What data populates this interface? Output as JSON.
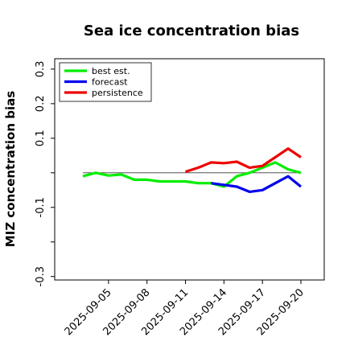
{
  "chart_data": {
    "type": "line",
    "title": "Sea ice concentration bias",
    "xlabel": "",
    "ylabel": "MIZ concentration bias",
    "ylim": [
      -0.31,
      0.33
    ],
    "yticks": [
      {
        "value": 0.3,
        "label": "0.3"
      },
      {
        "value": 0.2,
        "label": "0.2"
      },
      {
        "value": 0.1,
        "label": "0.1"
      },
      {
        "value": 0.0,
        "label": ""
      },
      {
        "value": -0.1,
        "label": "-0.1"
      },
      {
        "value": -0.2,
        "label": ""
      },
      {
        "value": -0.3,
        "label": "-0.3"
      }
    ],
    "xlim": [
      0,
      17.5
    ],
    "xticks": [
      {
        "value": 2,
        "label": "2025-09-05",
        "color": "#000000"
      },
      {
        "value": 5,
        "label": "2025-09-08",
        "color": "#000000"
      },
      {
        "value": 8,
        "label": "2025-09-11",
        "color": "#2e8b2e"
      },
      {
        "value": 11,
        "label": "2025-09-14",
        "color": "#000000"
      },
      {
        "value": 14,
        "label": "2025-09-17",
        "color": "#000000"
      },
      {
        "value": 17,
        "label": "2025-09-20",
        "color": "#000000"
      }
    ],
    "reference_line": {
      "y": 0.0,
      "x_start": 0,
      "x_end": 17,
      "color": "#555555"
    },
    "legend_position": "top-left",
    "grid": false,
    "series": [
      {
        "name": "best est.",
        "color": "#00ee00",
        "x": [
          0,
          1,
          2,
          3,
          4,
          5,
          6,
          7,
          8,
          9,
          10,
          11,
          12,
          13,
          14,
          15,
          16,
          17
        ],
        "y": [
          -0.01,
          0.0,
          -0.008,
          -0.005,
          -0.02,
          -0.02,
          -0.025,
          -0.025,
          -0.025,
          -0.03,
          -0.03,
          -0.04,
          -0.01,
          0.0,
          0.015,
          0.03,
          0.01,
          0.0
        ]
      },
      {
        "name": "forecast",
        "color": "#0000ee",
        "x": [
          10,
          11,
          12,
          13,
          14,
          15,
          16,
          17
        ],
        "y": [
          -0.03,
          -0.035,
          -0.04,
          -0.055,
          -0.05,
          -0.03,
          -0.01,
          -0.04
        ]
      },
      {
        "name": "persistence",
        "color": "#ee0000",
        "x": [
          8,
          9,
          10,
          11,
          12,
          13,
          14,
          15,
          16,
          17
        ],
        "y": [
          0.003,
          0.015,
          0.03,
          0.028,
          0.032,
          0.015,
          0.02,
          0.045,
          0.07,
          0.045
        ]
      }
    ]
  }
}
